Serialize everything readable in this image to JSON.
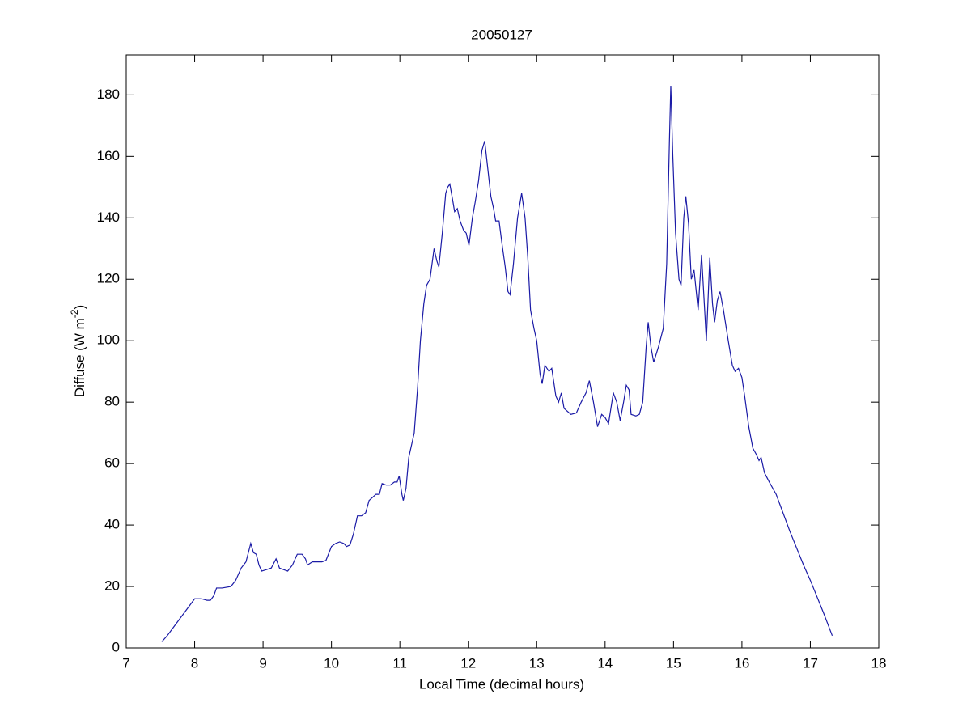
{
  "chart_data": {
    "type": "line",
    "title": "20050127",
    "xlabel": "Local Time (decimal hours)",
    "ylabel_parts": [
      "Diffuse (W m",
      "-2",
      ")"
    ],
    "xlim": [
      7,
      18
    ],
    "ylim": [
      0,
      193
    ],
    "xticks": [
      7,
      8,
      9,
      10,
      11,
      12,
      13,
      14,
      15,
      16,
      17,
      18
    ],
    "yticks": [
      0,
      20,
      40,
      60,
      80,
      100,
      120,
      140,
      160,
      180
    ],
    "grid": false,
    "x": [
      7.52,
      7.6,
      7.7,
      7.8,
      7.9,
      8.0,
      8.1,
      8.18,
      8.23,
      8.28,
      8.32,
      8.4,
      8.53,
      8.6,
      8.68,
      8.75,
      8.82,
      8.86,
      8.9,
      8.94,
      8.98,
      9.05,
      9.12,
      9.19,
      9.24,
      9.3,
      9.36,
      9.43,
      9.5,
      9.57,
      9.62,
      9.65,
      9.72,
      9.8,
      9.86,
      9.92,
      10.0,
      10.06,
      10.12,
      10.18,
      10.22,
      10.27,
      10.32,
      10.38,
      10.44,
      10.5,
      10.55,
      10.6,
      10.65,
      10.7,
      10.74,
      10.8,
      10.86,
      10.92,
      10.96,
      10.99,
      11.03,
      11.05,
      11.09,
      11.13,
      11.21,
      11.26,
      11.3,
      11.35,
      11.39,
      11.44,
      11.5,
      11.54,
      11.57,
      11.62,
      11.67,
      11.7,
      11.73,
      11.77,
      11.8,
      11.84,
      11.88,
      11.93,
      11.97,
      12.01,
      12.06,
      12.1,
      12.15,
      12.2,
      12.24,
      12.28,
      12.33,
      12.37,
      12.4,
      12.45,
      12.49,
      12.54,
      12.58,
      12.61,
      12.66,
      12.72,
      12.78,
      12.83,
      12.87,
      12.91,
      12.96,
      13.0,
      13.05,
      13.08,
      13.12,
      13.18,
      13.22,
      13.28,
      13.32,
      13.36,
      13.4,
      13.45,
      13.5,
      13.58,
      13.65,
      13.72,
      13.77,
      13.83,
      13.89,
      13.95,
      14.0,
      14.05,
      14.12,
      14.17,
      14.22,
      14.27,
      14.31,
      14.35,
      14.38,
      14.45,
      14.5,
      14.55,
      14.6,
      14.63,
      14.67,
      14.71,
      14.78,
      14.85,
      14.9,
      14.94,
      14.96,
      14.99,
      15.03,
      15.08,
      15.11,
      15.15,
      15.18,
      15.22,
      15.26,
      15.3,
      15.36,
      15.41,
      15.45,
      15.48,
      15.53,
      15.57,
      15.6,
      15.64,
      15.68,
      15.73,
      15.8,
      15.86,
      15.9,
      15.95,
      16.0,
      16.04,
      16.1,
      16.16,
      16.21,
      16.25,
      16.28,
      16.33,
      16.4,
      16.45,
      16.5,
      16.6,
      16.7,
      16.8,
      16.9,
      17.0,
      17.1,
      17.2,
      17.32
    ],
    "series": [
      {
        "name": "Diffuse",
        "color": "#1a1aa6",
        "values": [
          2,
          4,
          7,
          10,
          13,
          16,
          16,
          15.5,
          15.5,
          17,
          19.5,
          19.5,
          20,
          22,
          26,
          28,
          34,
          31,
          30.5,
          27,
          25,
          25.5,
          26,
          29,
          26,
          25.5,
          25,
          27,
          30.5,
          30.5,
          29,
          27,
          28,
          28,
          28,
          28.5,
          33,
          34,
          34.5,
          34,
          33,
          33.5,
          37,
          43,
          43,
          44,
          48,
          49,
          50,
          50,
          53.5,
          53,
          53,
          54,
          54,
          56,
          50,
          48,
          52,
          62,
          70,
          85,
          100,
          112,
          118,
          120,
          130,
          126,
          124,
          135,
          148,
          150,
          151,
          146,
          142,
          143,
          139,
          136,
          135,
          131,
          140,
          145,
          152,
          162,
          165,
          157,
          147,
          143,
          139,
          139,
          132,
          124,
          116,
          115,
          125,
          140,
          148,
          140,
          127,
          110,
          104,
          100,
          89,
          86,
          92,
          90,
          91,
          82,
          80,
          83,
          78,
          77,
          76,
          76.5,
          80,
          83,
          87,
          80,
          72,
          76,
          75,
          73,
          83,
          80,
          74,
          80,
          85.5,
          84,
          76,
          75.5,
          76,
          80,
          98,
          106,
          98,
          93,
          98,
          104,
          125,
          165,
          183,
          160,
          135,
          120,
          118,
          140,
          147,
          138,
          120,
          123,
          110,
          128,
          112,
          100,
          127,
          112,
          106,
          113,
          116,
          110,
          100,
          92,
          90,
          91,
          88,
          82,
          72,
          65,
          63,
          61,
          62,
          57,
          54,
          52,
          50,
          44,
          38,
          32.5,
          27,
          22,
          16.5,
          11,
          4
        ]
      }
    ]
  }
}
